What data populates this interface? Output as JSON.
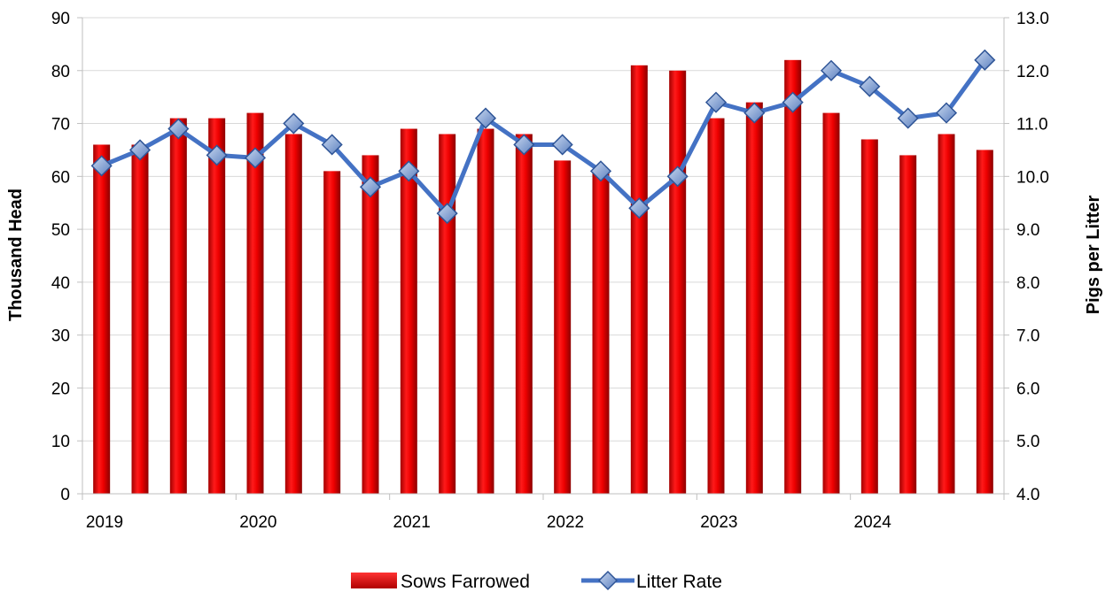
{
  "chart_data": {
    "type": "bar",
    "categories": [
      "2019 Q1",
      "2019 Q2",
      "2019 Q3",
      "2019 Q4",
      "2020 Q1",
      "2020 Q2",
      "2020 Q3",
      "2020 Q4",
      "2021 Q1",
      "2021 Q2",
      "2021 Q3",
      "2021 Q4",
      "2022 Q1",
      "2022 Q2",
      "2022 Q3",
      "2022 Q4",
      "2023 Q1",
      "2023 Q2",
      "2023 Q3",
      "2023 Q4",
      "2024 Q1",
      "2024 Q2",
      "2024 Q3",
      "2024 Q4"
    ],
    "x_tick_labels": [
      "2019",
      "2020",
      "2021",
      "2022",
      "2023",
      "2024"
    ],
    "series": [
      {
        "name": "Sows Farrowed",
        "type": "bar",
        "axis": "left",
        "color": "#ee0000",
        "values": [
          66,
          66,
          71,
          71,
          72,
          68,
          61,
          64,
          69,
          68,
          69,
          68,
          63,
          61,
          81,
          80,
          71,
          74,
          82,
          72,
          67,
          64,
          68,
          65
        ]
      },
      {
        "name": "Litter Rate",
        "type": "line",
        "axis": "right",
        "color": "#4472c4",
        "values": [
          10.2,
          10.5,
          10.9,
          10.4,
          10.35,
          11.0,
          10.6,
          9.8,
          10.1,
          9.3,
          11.1,
          10.6,
          10.6,
          10.1,
          9.4,
          10.0,
          11.4,
          11.2,
          11.4,
          12.0,
          11.7,
          11.1,
          11.2,
          12.2
        ]
      }
    ],
    "ylabel": "Thousand Head",
    "y2label": "Pigs per Litter",
    "ylim": [
      0,
      90
    ],
    "y2lim": [
      4.0,
      13.0
    ],
    "yticks": [
      "0",
      "10",
      "20",
      "30",
      "40",
      "50",
      "60",
      "70",
      "80",
      "90"
    ],
    "y2ticks": [
      "4.0",
      "5.0",
      "6.0",
      "7.0",
      "8.0",
      "9.0",
      "10.0",
      "11.0",
      "12.0",
      "13.0"
    ],
    "grid": true,
    "legend_position": "bottom"
  }
}
